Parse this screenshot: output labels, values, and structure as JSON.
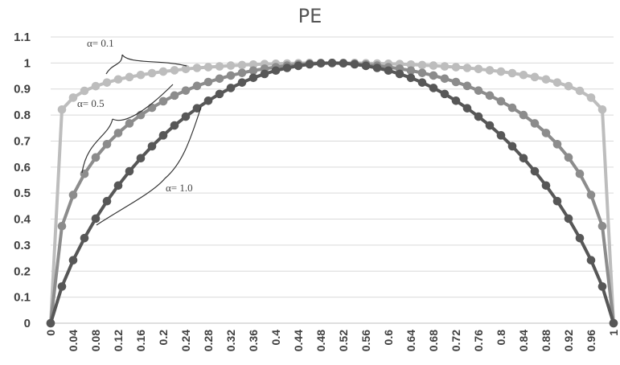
{
  "chart_data": {
    "type": "line",
    "title": "PE",
    "xlabel": "",
    "ylabel": "",
    "xlim": [
      0,
      1
    ],
    "ylim": [
      0,
      1.1
    ],
    "y_ticks": [
      "0",
      "0.1",
      "0.2",
      "0.3",
      "0.4",
      "0.5",
      "0.6",
      "0.7",
      "0.8",
      "0.9",
      "1",
      "1.1"
    ],
    "x_ticks": [
      "0",
      "0.04",
      "0.08",
      "0.12",
      "0.16",
      "0.2",
      "0.24",
      "0.28",
      "0.32",
      "0.36",
      "0.4",
      "0.44",
      "0.48",
      "0.52",
      "0.56",
      "0.6",
      "0.64",
      "0.68",
      "0.72",
      "0.76",
      "0.8",
      "0.84",
      "0.88",
      "0.92",
      "0.96",
      "1"
    ],
    "grid": "horizontal",
    "legend": "none",
    "x": [
      0,
      0.02,
      0.04,
      0.06,
      0.08,
      0.1,
      0.12,
      0.14,
      0.16,
      0.18,
      0.2,
      0.22,
      0.24,
      0.26,
      0.28,
      0.3,
      0.32,
      0.34,
      0.36,
      0.38,
      0.4,
      0.42,
      0.44,
      0.46,
      0.48,
      0.5,
      0.52,
      0.54,
      0.56,
      0.58,
      0.6,
      0.62,
      0.64,
      0.66,
      0.68,
      0.7,
      0.72,
      0.74,
      0.76,
      0.78,
      0.8,
      0.82,
      0.84,
      0.86,
      0.88,
      0.9,
      0.92,
      0.94,
      0.96,
      0.98,
      1
    ],
    "series": [
      {
        "name": "α= 0.1",
        "color": "#bdbdbd",
        "values": [
          0,
          0.821,
          0.867,
          0.893,
          0.911,
          0.925,
          0.937,
          0.946,
          0.954,
          0.961,
          0.967,
          0.972,
          0.977,
          0.981,
          0.984,
          0.987,
          0.99,
          0.992,
          0.994,
          0.996,
          0.997,
          0.998,
          0.999,
          1.0,
          1.0,
          1.0,
          1.0,
          1.0,
          0.999,
          0.998,
          0.997,
          0.996,
          0.994,
          0.992,
          0.99,
          0.987,
          0.984,
          0.981,
          0.977,
          0.972,
          0.967,
          0.961,
          0.954,
          0.946,
          0.937,
          0.925,
          0.911,
          0.893,
          0.867,
          0.821,
          0
        ]
      },
      {
        "name": "α= 0.5",
        "color": "#8c8c8c",
        "values": [
          0,
          0.373,
          0.493,
          0.574,
          0.637,
          0.688,
          0.731,
          0.768,
          0.8,
          0.828,
          0.853,
          0.875,
          0.894,
          0.912,
          0.927,
          0.94,
          0.952,
          0.962,
          0.971,
          0.978,
          0.984,
          0.99,
          0.994,
          0.997,
          0.999,
          1.0,
          0.999,
          0.997,
          0.994,
          0.99,
          0.984,
          0.978,
          0.971,
          0.962,
          0.952,
          0.94,
          0.927,
          0.912,
          0.894,
          0.875,
          0.853,
          0.828,
          0.8,
          0.768,
          0.731,
          0.688,
          0.637,
          0.574,
          0.493,
          0.373,
          0
        ]
      },
      {
        "name": "α= 1.0",
        "color": "#575757",
        "values": [
          0,
          0.141,
          0.242,
          0.327,
          0.402,
          0.469,
          0.529,
          0.584,
          0.634,
          0.68,
          0.722,
          0.76,
          0.794,
          0.826,
          0.855,
          0.881,
          0.904,
          0.925,
          0.943,
          0.958,
          0.971,
          0.981,
          0.989,
          0.995,
          0.999,
          1.0,
          0.999,
          0.995,
          0.989,
          0.981,
          0.971,
          0.958,
          0.943,
          0.925,
          0.904,
          0.881,
          0.855,
          0.826,
          0.794,
          0.76,
          0.722,
          0.68,
          0.634,
          0.584,
          0.529,
          0.469,
          0.402,
          0.327,
          0.242,
          0.141,
          0
        ]
      }
    ],
    "annotations": [
      {
        "text": "α= 0.1",
        "series": 0
      },
      {
        "text": "α= 0.5",
        "series": 1
      },
      {
        "text": "α= 1.0",
        "series": 2
      }
    ]
  }
}
